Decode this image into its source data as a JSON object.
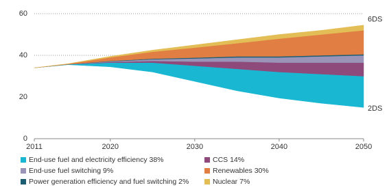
{
  "chart_data": {
    "type": "stacked-area",
    "x": [
      2011,
      2015,
      2020,
      2025,
      2030,
      2035,
      2040,
      2045,
      2050
    ],
    "xlim": [
      2011,
      2050
    ],
    "xticks": [
      2011,
      2020,
      2030,
      2040,
      2050
    ],
    "ylim": [
      0,
      60
    ],
    "yticks": [
      0,
      20,
      40,
      60
    ],
    "grid": true,
    "baseline": {
      "label": "2DS",
      "values": [
        34,
        35.5,
        34.5,
        32,
        27.5,
        23,
        19.5,
        17,
        15
      ]
    },
    "top_label": "6DS",
    "series": [
      {
        "name": "End-use fuel and electricity efficiency 38%",
        "color": "#1ab7d3",
        "values": [
          0,
          0.2,
          2,
          4.5,
          7.5,
          10.5,
          12.5,
          14,
          15
        ]
      },
      {
        "name": "CCS 14%",
        "color": "#8e4a7a",
        "values": [
          0,
          0,
          0.3,
          0.8,
          2,
          3.5,
          4.5,
          5.5,
          6.5
        ]
      },
      {
        "name": "End-use fuel switching 9%",
        "color": "#9a94b8",
        "values": [
          0,
          0,
          0.3,
          0.8,
          1.5,
          2,
          2.5,
          3,
          3.5
        ]
      },
      {
        "name": "Power generation efficiency and fuel switching 2%",
        "color": "#1b5e74",
        "values": [
          0,
          0,
          0.2,
          0.3,
          0.4,
          0.5,
          0.5,
          0.5,
          0.5
        ]
      },
      {
        "name": "Renewables 30%",
        "color": "#e07e44",
        "values": [
          0,
          0.2,
          1.7,
          3.3,
          4.8,
          6.3,
          8.5,
          10,
          11.5
        ]
      },
      {
        "name": "Nuclear 7%",
        "color": "#e3bd55",
        "values": [
          0,
          0.1,
          0.5,
          0.8,
          1.3,
          1.7,
          2,
          2,
          2.5
        ]
      }
    ]
  }
}
